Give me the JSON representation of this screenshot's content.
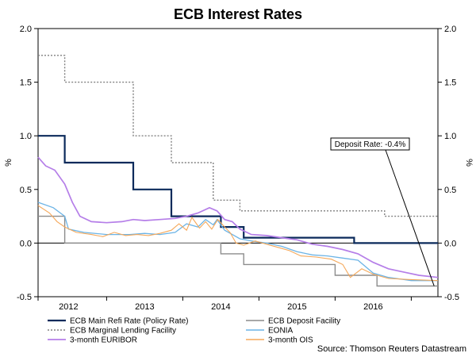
{
  "chart_data": {
    "type": "line",
    "title": "ECB Interest Rates",
    "ylabel_left": "%",
    "ylabel_right": "%",
    "xlim": [
      2011.6,
      2016.85
    ],
    "ylim": [
      -0.5,
      2.0
    ],
    "y_ticks": [
      2.0,
      1.5,
      1.0,
      0.5,
      0.0,
      -0.5
    ],
    "y_tick_labels": [
      "2.0",
      "1.5",
      "1.0",
      "0.5",
      "0.0",
      "-0.5"
    ],
    "x_tick_labels": [
      "2012",
      "2013",
      "2014",
      "2015",
      "2016"
    ],
    "x_label_positions": [
      2012.0,
      2013.0,
      2014.0,
      2015.0,
      2016.0
    ],
    "x_tick_marks": [
      2011.6,
      2012.5,
      2013.5,
      2014.5,
      2015.5,
      2016.5
    ],
    "series": [
      {
        "name": "ECB Main Refi Rate (Policy Rate)",
        "color": "#0b2a5b",
        "style": "solid",
        "width": 2.2,
        "step": true,
        "points": [
          [
            2011.6,
            1.0
          ],
          [
            2011.95,
            0.75
          ],
          [
            2012.85,
            0.5
          ],
          [
            2013.35,
            0.25
          ],
          [
            2014.0,
            0.15
          ],
          [
            2014.3,
            0.05
          ],
          [
            2015.75,
            0.0
          ],
          [
            2016.85,
            0.0
          ]
        ]
      },
      {
        "name": "ECB Deposit Facility",
        "color": "#8c8c8c",
        "style": "solid",
        "width": 1.4,
        "step": true,
        "points": [
          [
            2011.6,
            0.25
          ],
          [
            2011.95,
            0.0
          ],
          [
            2014.0,
            -0.1
          ],
          [
            2014.3,
            -0.2
          ],
          [
            2015.5,
            -0.3
          ],
          [
            2016.05,
            -0.4
          ],
          [
            2016.85,
            -0.4
          ]
        ]
      },
      {
        "name": "ECB Marginal Lending Facility",
        "color": "#808080",
        "style": "dotted",
        "width": 1.4,
        "step": true,
        "points": [
          [
            2011.6,
            1.75
          ],
          [
            2011.95,
            1.5
          ],
          [
            2012.85,
            1.0
          ],
          [
            2013.35,
            0.75
          ],
          [
            2013.9,
            0.4
          ],
          [
            2014.25,
            0.3
          ],
          [
            2016.15,
            0.25
          ],
          [
            2016.85,
            0.25
          ]
        ]
      },
      {
        "name": "EONIA",
        "color": "#6cb4e6",
        "style": "solid",
        "width": 1.3,
        "step": false,
        "points": [
          [
            2011.6,
            0.38
          ],
          [
            2011.8,
            0.33
          ],
          [
            2011.95,
            0.25
          ],
          [
            2012.0,
            0.13
          ],
          [
            2012.2,
            0.1
          ],
          [
            2012.5,
            0.08
          ],
          [
            2012.8,
            0.08
          ],
          [
            2013.0,
            0.09
          ],
          [
            2013.2,
            0.08
          ],
          [
            2013.4,
            0.1
          ],
          [
            2013.55,
            0.18
          ],
          [
            2013.7,
            0.15
          ],
          [
            2013.8,
            0.22
          ],
          [
            2013.9,
            0.17
          ],
          [
            2013.95,
            0.22
          ],
          [
            2014.05,
            0.12
          ],
          [
            2014.15,
            0.08
          ],
          [
            2014.25,
            0.04
          ],
          [
            2014.4,
            0.02
          ],
          [
            2014.6,
            0.0
          ],
          [
            2014.8,
            -0.03
          ],
          [
            2015.0,
            -0.08
          ],
          [
            2015.2,
            -0.11
          ],
          [
            2015.4,
            -0.12
          ],
          [
            2015.6,
            -0.14
          ],
          [
            2015.8,
            -0.16
          ],
          [
            2016.0,
            -0.28
          ],
          [
            2016.2,
            -0.32
          ],
          [
            2016.5,
            -0.35
          ],
          [
            2016.85,
            -0.35
          ]
        ]
      },
      {
        "name": "3-month OIS",
        "color": "#f5a85a",
        "style": "solid",
        "width": 1.1,
        "step": false,
        "points": [
          [
            2011.6,
            0.35
          ],
          [
            2011.75,
            0.28
          ],
          [
            2011.85,
            0.2
          ],
          [
            2011.95,
            0.15
          ],
          [
            2012.1,
            0.1
          ],
          [
            2012.3,
            0.08
          ],
          [
            2012.45,
            0.06
          ],
          [
            2012.6,
            0.1
          ],
          [
            2012.75,
            0.07
          ],
          [
            2012.9,
            0.08
          ],
          [
            2013.05,
            0.07
          ],
          [
            2013.2,
            0.09
          ],
          [
            2013.35,
            0.12
          ],
          [
            2013.45,
            0.18
          ],
          [
            2013.55,
            0.12
          ],
          [
            2013.62,
            0.24
          ],
          [
            2013.72,
            0.14
          ],
          [
            2013.8,
            0.2
          ],
          [
            2013.88,
            0.13
          ],
          [
            2013.96,
            0.22
          ],
          [
            2014.05,
            0.15
          ],
          [
            2014.12,
            0.1
          ],
          [
            2014.2,
            0.0
          ],
          [
            2014.3,
            -0.02
          ],
          [
            2014.45,
            0.02
          ],
          [
            2014.6,
            -0.01
          ],
          [
            2014.75,
            -0.04
          ],
          [
            2014.9,
            -0.07
          ],
          [
            2015.05,
            -0.12
          ],
          [
            2015.25,
            -0.13
          ],
          [
            2015.45,
            -0.15
          ],
          [
            2015.6,
            -0.2
          ],
          [
            2015.7,
            -0.32
          ],
          [
            2015.85,
            -0.24
          ],
          [
            2016.0,
            -0.29
          ],
          [
            2016.2,
            -0.33
          ],
          [
            2016.5,
            -0.34
          ],
          [
            2016.85,
            -0.35
          ]
        ]
      },
      {
        "name": "3-month EURIBOR",
        "color": "#b57ee8",
        "style": "solid",
        "width": 1.7,
        "step": false,
        "points": [
          [
            2011.6,
            0.8
          ],
          [
            2011.7,
            0.72
          ],
          [
            2011.82,
            0.68
          ],
          [
            2011.95,
            0.55
          ],
          [
            2012.05,
            0.38
          ],
          [
            2012.15,
            0.25
          ],
          [
            2012.3,
            0.2
          ],
          [
            2012.5,
            0.19
          ],
          [
            2012.7,
            0.2
          ],
          [
            2012.85,
            0.22
          ],
          [
            2013.0,
            0.21
          ],
          [
            2013.2,
            0.22
          ],
          [
            2013.4,
            0.23
          ],
          [
            2013.55,
            0.25
          ],
          [
            2013.7,
            0.28
          ],
          [
            2013.85,
            0.33
          ],
          [
            2013.95,
            0.3
          ],
          [
            2014.05,
            0.22
          ],
          [
            2014.15,
            0.2
          ],
          [
            2014.25,
            0.13
          ],
          [
            2014.4,
            0.08
          ],
          [
            2014.6,
            0.07
          ],
          [
            2014.8,
            0.05
          ],
          [
            2015.0,
            0.03
          ],
          [
            2015.2,
            -0.01
          ],
          [
            2015.4,
            -0.03
          ],
          [
            2015.6,
            -0.06
          ],
          [
            2015.8,
            -0.1
          ],
          [
            2016.0,
            -0.18
          ],
          [
            2016.2,
            -0.24
          ],
          [
            2016.4,
            -0.27
          ],
          [
            2016.6,
            -0.3
          ],
          [
            2016.85,
            -0.32
          ]
        ]
      }
    ],
    "annotation": {
      "text": "Deposit Rate: -0.4%",
      "x": 2016.8,
      "y": -0.4
    },
    "legend_placement": "bottom",
    "source": "Source: Thomson Reuters Datastream"
  }
}
